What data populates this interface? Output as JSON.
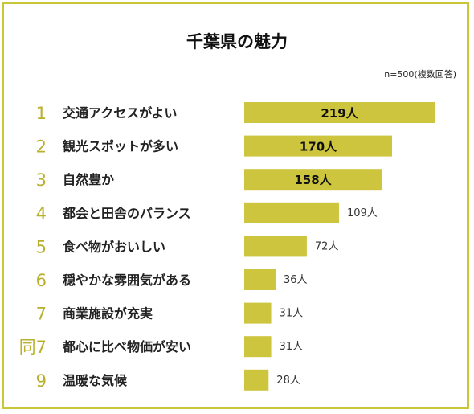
{
  "chart_data": {
    "type": "bar",
    "orientation": "horizontal",
    "title": "千葉県の魅力",
    "note": "n=500(複数回答)",
    "unit": "人",
    "colors": {
      "bar": "#cdc53e",
      "rank": "#b7b02c",
      "frame": "#c9c63a"
    },
    "categories": [
      "交通アクセスがよい",
      "観光スポットが多い",
      "自然豊か",
      "都会と田舎のバランス",
      "食べ物がおいしい",
      "穏やかな雰囲気がある",
      "商業施設が充実",
      "都心に比べ物価が安い",
      "温暖な気候"
    ],
    "ranks": [
      "1",
      "2",
      "3",
      "4",
      "5",
      "6",
      "7",
      "同7",
      "9"
    ],
    "values": [
      219,
      170,
      158,
      109,
      72,
      36,
      31,
      31,
      28
    ],
    "value_labels": [
      "219人",
      "170人",
      "158人",
      "109人",
      "72人",
      "36人",
      "31人",
      "31人",
      "28人"
    ]
  }
}
